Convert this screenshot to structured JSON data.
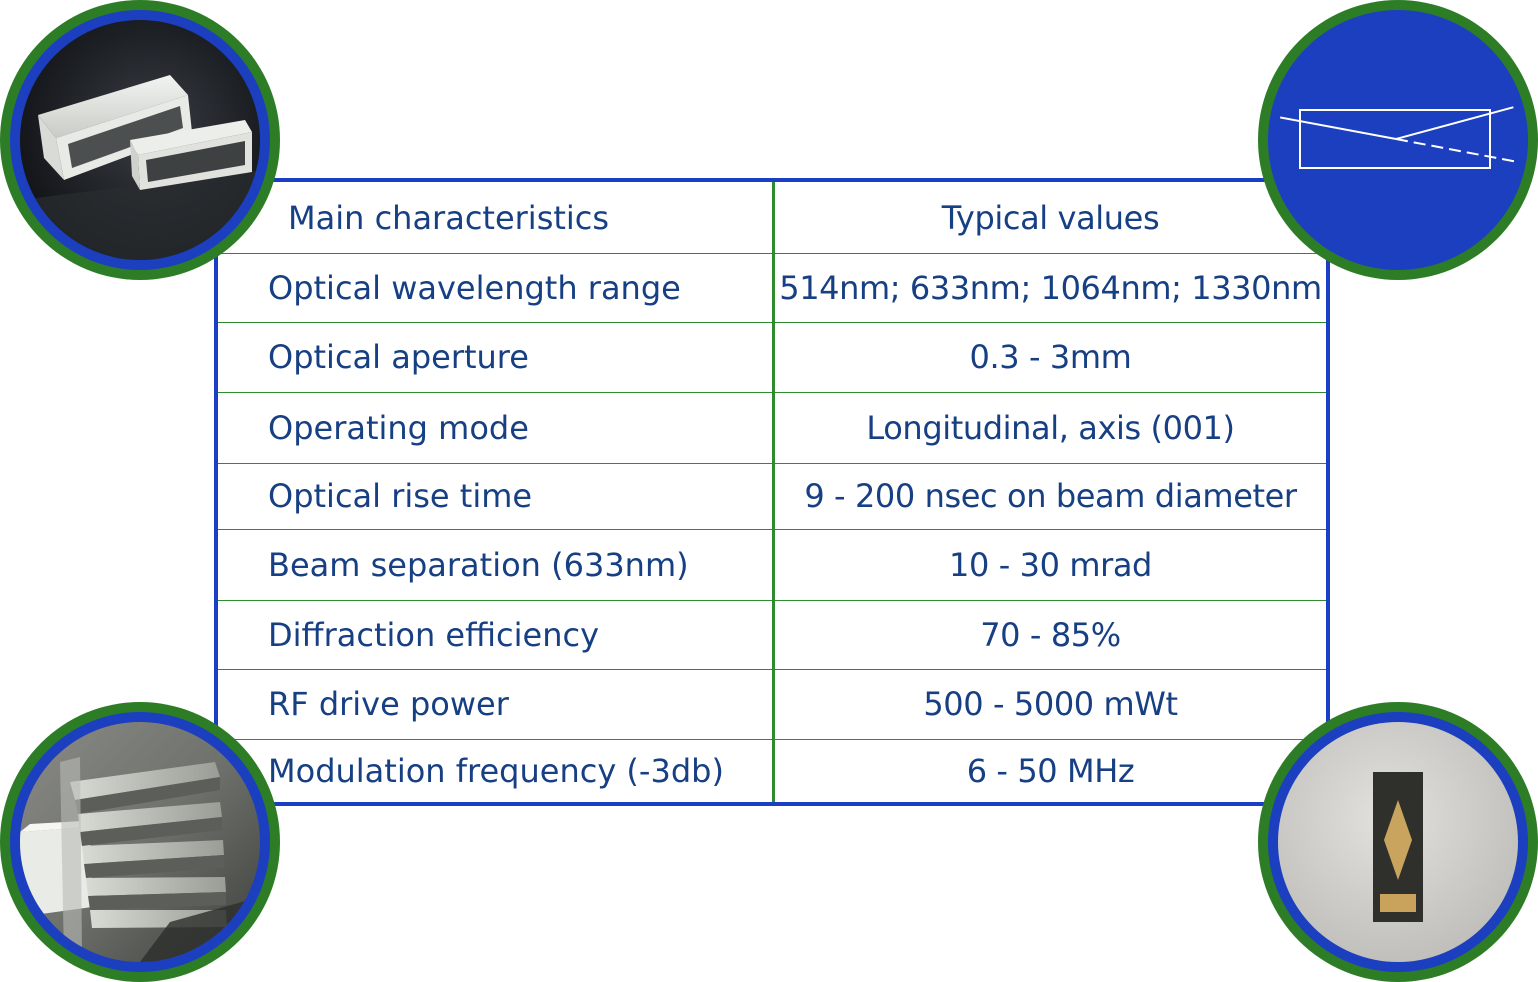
{
  "table": {
    "header": {
      "name": "Main characteristics",
      "value": "Typical values"
    },
    "rows": [
      {
        "name": "Optical wavelength range",
        "value": "514nm; 633nm; 1064nm; 1330nm"
      },
      {
        "name": "Optical aperture",
        "value": "0.3 - 3mm"
      },
      {
        "name": "Operating mode",
        "value": "Longitudinal, axis (001)"
      },
      {
        "name": "Optical rise time",
        "value": "9 - 200 nsec on beam diameter"
      },
      {
        "name": "Beam separation (633nm)",
        "value": "10 - 30 mrad"
      },
      {
        "name": "Diffraction efficiency",
        "value": "70 - 85%"
      },
      {
        "name": "RF drive power",
        "value": "500 - 5000 mWt"
      },
      {
        "name": "Modulation frequency (-3db)",
        "value": "6 - 50 MHz"
      }
    ]
  },
  "colors": {
    "table_border": "#1a3fc4",
    "grid_lines": "#2e8b2e",
    "text": "#173f83",
    "circle_outer": "#2d7d27",
    "circle_ring": "#1c3fbf"
  },
  "images": [
    {
      "name": "crystal-pair-photo",
      "position": "top-left"
    },
    {
      "name": "beam-deflection-diagram",
      "position": "top-right"
    },
    {
      "name": "crystal-array-photo",
      "position": "bottom-left"
    },
    {
      "name": "transducer-chip-photo",
      "position": "bottom-right"
    }
  ]
}
